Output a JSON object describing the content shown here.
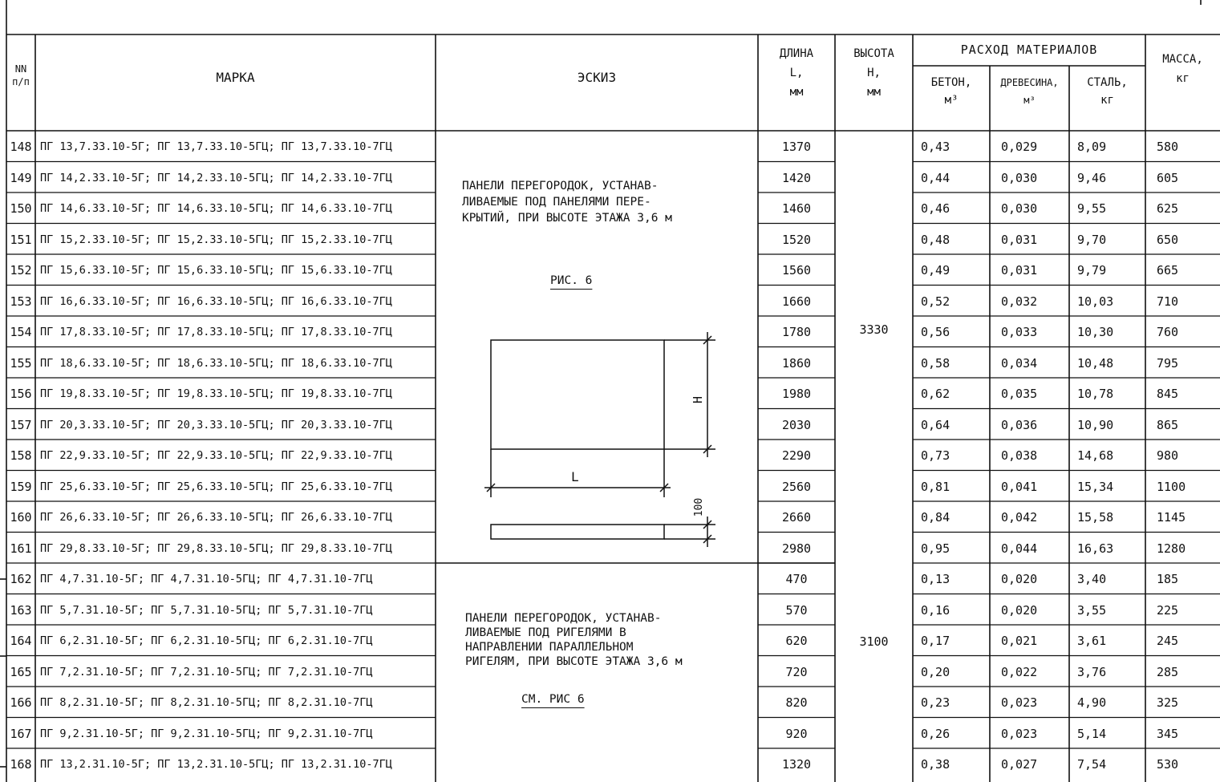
{
  "header": {
    "nn": "NN",
    "nn_sub": "п/п",
    "mark": "МАРКА",
    "sketch": "ЭСКИЗ",
    "length": [
      "ДЛИНА",
      "L,",
      "мм"
    ],
    "height": [
      "ВЫСОТА",
      "H,",
      "мм"
    ],
    "materials": "РАСХОД МАТЕРИАЛОВ",
    "concrete": [
      "БЕТОН,",
      "м³"
    ],
    "wood": [
      "ДРЕВЕСИНА,",
      "м³"
    ],
    "steel": [
      "СТАЛЬ,",
      "кг"
    ],
    "mass": [
      "МАССА,",
      "кг"
    ]
  },
  "rows": [
    {
      "nn": "148",
      "mark": "ПГ 13,7.33.10-5Г; ПГ 13,7.33.10-5ГЦ; ПГ 13,7.33.10-7ГЦ",
      "length": "1370",
      "concrete": "0,43",
      "wood": "0,029",
      "steel": "8,09",
      "mass": "580"
    },
    {
      "nn": "149",
      "mark": "ПГ 14,2.33.10-5Г; ПГ 14,2.33.10-5ГЦ; ПГ 14,2.33.10-7ГЦ",
      "length": "1420",
      "concrete": "0,44",
      "wood": "0,030",
      "steel": "9,46",
      "mass": "605"
    },
    {
      "nn": "150",
      "mark": "ПГ 14,6.33.10-5Г; ПГ 14,6.33.10-5ГЦ; ПГ 14,6.33.10-7ГЦ",
      "length": "1460",
      "concrete": "0,46",
      "wood": "0,030",
      "steel": "9,55",
      "mass": "625"
    },
    {
      "nn": "151",
      "mark": "ПГ 15,2.33.10-5Г; ПГ 15,2.33.10-5ГЦ; ПГ 15,2.33.10-7ГЦ",
      "length": "1520",
      "concrete": "0,48",
      "wood": "0,031",
      "steel": "9,70",
      "mass": "650"
    },
    {
      "nn": "152",
      "mark": "ПГ 15,6.33.10-5Г; ПГ 15,6.33.10-5ГЦ; ПГ 15,6.33.10-7ГЦ",
      "length": "1560",
      "concrete": "0,49",
      "wood": "0,031",
      "steel": "9,79",
      "mass": "665"
    },
    {
      "nn": "153",
      "mark": "ПГ 16,6.33.10-5Г; ПГ 16,6.33.10-5ГЦ; ПГ 16,6.33.10-7ГЦ",
      "length": "1660",
      "concrete": "0,52",
      "wood": "0,032",
      "steel": "10,03",
      "mass": "710"
    },
    {
      "nn": "154",
      "mark": "ПГ 17,8.33.10-5Г; ПГ 17,8.33.10-5ГЦ; ПГ 17,8.33.10-7ГЦ",
      "length": "1780",
      "concrete": "0,56",
      "wood": "0,033",
      "steel": "10,30",
      "mass": "760"
    },
    {
      "nn": "155",
      "mark": "ПГ 18,6.33.10-5Г; ПГ 18,6.33.10-5ГЦ; ПГ 18,6.33.10-7ГЦ",
      "length": "1860",
      "concrete": "0,58",
      "wood": "0,034",
      "steel": "10,48",
      "mass": "795"
    },
    {
      "nn": "156",
      "mark": "ПГ 19,8.33.10-5Г; ПГ 19,8.33.10-5ГЦ; ПГ 19,8.33.10-7ГЦ",
      "length": "1980",
      "concrete": "0,62",
      "wood": "0,035",
      "steel": "10,78",
      "mass": "845"
    },
    {
      "nn": "157",
      "mark": "ПГ 20,3.33.10-5Г; ПГ 20,3.33.10-5ГЦ; ПГ 20,3.33.10-7ГЦ",
      "length": "2030",
      "concrete": "0,64",
      "wood": "0,036",
      "steel": "10,90",
      "mass": "865"
    },
    {
      "nn": "158",
      "mark": "ПГ 22,9.33.10-5Г; ПГ 22,9.33.10-5ГЦ; ПГ 22,9.33.10-7ГЦ",
      "length": "2290",
      "concrete": "0,73",
      "wood": "0,038",
      "steel": "14,68",
      "mass": "980"
    },
    {
      "nn": "159",
      "mark": "ПГ 25,6.33.10-5Г; ПГ 25,6.33.10-5ГЦ; ПГ 25,6.33.10-7ГЦ",
      "length": "2560",
      "concrete": "0,81",
      "wood": "0,041",
      "steel": "15,34",
      "mass": "1100"
    },
    {
      "nn": "160",
      "mark": "ПГ 26,6.33.10-5Г; ПГ 26,6.33.10-5ГЦ; ПГ 26,6.33.10-7ГЦ",
      "length": "2660",
      "concrete": "0,84",
      "wood": "0,042",
      "steel": "15,58",
      "mass": "1145"
    },
    {
      "nn": "161",
      "mark": "ПГ 29,8.33.10-5Г; ПГ 29,8.33.10-5ГЦ; ПГ 29,8.33.10-7ГЦ",
      "length": "2980",
      "concrete": "0,95",
      "wood": "0,044",
      "steel": "16,63",
      "mass": "1280"
    },
    {
      "nn": "162",
      "mark": "ПГ 4,7.31.10-5Г; ПГ 4,7.31.10-5ГЦ; ПГ 4,7.31.10-7ГЦ",
      "length": "470",
      "concrete": "0,13",
      "wood": "0,020",
      "steel": "3,40",
      "mass": "185"
    },
    {
      "nn": "163",
      "mark": "ПГ 5,7.31.10-5Г; ПГ 5,7.31.10-5ГЦ; ПГ 5,7.31.10-7ГЦ",
      "length": "570",
      "concrete": "0,16",
      "wood": "0,020",
      "steel": "3,55",
      "mass": "225"
    },
    {
      "nn": "164",
      "mark": "ПГ 6,2.31.10-5Г; ПГ 6,2.31.10-5ГЦ; ПГ 6,2.31.10-7ГЦ",
      "length": "620",
      "concrete": "0,17",
      "wood": "0,021",
      "steel": "3,61",
      "mass": "245"
    },
    {
      "nn": "165",
      "mark": "ПГ 7,2.31.10-5Г; ПГ 7,2.31.10-5ГЦ; ПГ 7,2.31.10-7ГЦ",
      "length": "720",
      "concrete": "0,20",
      "wood": "0,022",
      "steel": "3,76",
      "mass": "285"
    },
    {
      "nn": "166",
      "mark": "ПГ 8,2.31.10-5Г; ПГ 8,2.31.10-5ГЦ; ПГ 8,2.31.10-7ГЦ",
      "length": "820",
      "concrete": "0,23",
      "wood": "0,023",
      "steel": "4,90",
      "mass": "325"
    },
    {
      "nn": "167",
      "mark": "ПГ 9,2.31.10-5Г; ПГ 9,2.31.10-5ГЦ; ПГ 9,2.31.10-7ГЦ",
      "length": "920",
      "concrete": "0,26",
      "wood": "0,023",
      "steel": "5,14",
      "mass": "345"
    },
    {
      "nn": "168",
      "mark": "ПГ 13,2.31.10-5Г; ПГ 13,2.31.10-5ГЦ; ПГ 13,2.31.10-7ГЦ",
      "length": "1320",
      "concrete": "0,38",
      "wood": "0,027",
      "steel": "7,54",
      "mass": "530"
    }
  ],
  "groups": [
    {
      "height": "3330",
      "note": [
        "ПАНЕЛИ ПЕРЕГОРОДОК, УСТАНАВ-",
        "ЛИВАЕМЫЕ ПОД ПАНЕЛЯМИ ПЕРЕ-",
        "КРЫТИЙ, ПРИ ВЫСОТЕ ЭТАЖА 3,6 м"
      ],
      "figure": "РИС. 6"
    },
    {
      "height": "3100",
      "note": [
        "ПАНЕЛИ ПЕРЕГОРОДОК, УСТАНАВ-",
        "ЛИВАЕМЫЕ ПОД РИГЕЛЯМИ В",
        "НАПРАВЛЕНИИ ПАРАЛЛЕЛЬНОМ",
        "РИГЕЛЯМ, ПРИ ВЫСОТЕ ЭТАЖА 3,6 м"
      ],
      "figure": "СМ. РИС 6"
    }
  ],
  "sketch": {
    "dim_height": "H",
    "dim_length": "L",
    "dim_thickness": "100"
  }
}
